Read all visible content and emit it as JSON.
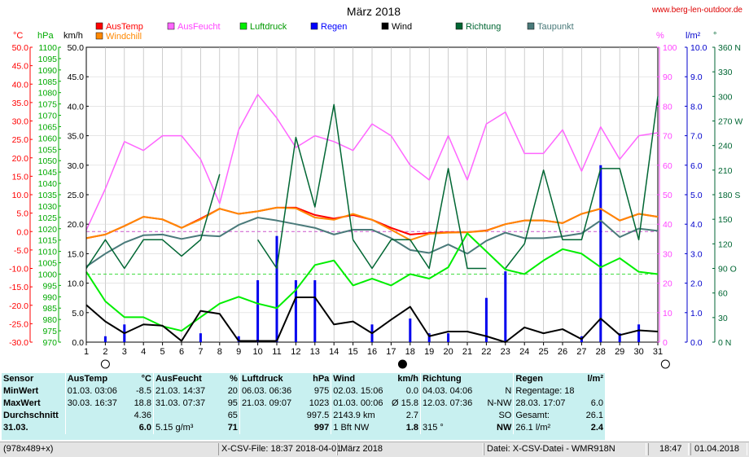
{
  "chart_data": {
    "type": "line",
    "title": "März 2018",
    "source": "www.berg-len-outdoor.de",
    "days": [
      1,
      2,
      3,
      4,
      5,
      6,
      7,
      8,
      9,
      10,
      11,
      12,
      13,
      14,
      15,
      16,
      17,
      18,
      19,
      20,
      21,
      22,
      23,
      24,
      25,
      26,
      27,
      28,
      29,
      30,
      31
    ],
    "axes": {
      "temp": {
        "unit": "°C",
        "color": "#ff0000",
        "min": -30,
        "max": 50,
        "ticks": [
          "50.0",
          "45.0",
          "40.0",
          "35.0",
          "30.0",
          "25.0",
          "20.0",
          "15.0",
          "10.0",
          "5.0",
          "0.0",
          "-5.0",
          "-10.0",
          "-15.0",
          "-20.0",
          "-25.0",
          "-30.0"
        ]
      },
      "pressure": {
        "unit": "hPa",
        "color": "#00cc00",
        "min": 970,
        "max": 1100,
        "ticks": [
          "1100",
          "1095",
          "1090",
          "1085",
          "1080",
          "1075",
          "1070",
          "1065",
          "1060",
          "1055",
          "1050",
          "1045",
          "1040",
          "1035",
          "1030",
          "1025",
          "1020",
          "1015",
          "1010",
          "1005",
          "1000",
          "995",
          "990",
          "985",
          "980",
          "975",
          "970"
        ]
      },
      "wind": {
        "unit": "km/h",
        "color": "#000000",
        "min": 0,
        "max": 50,
        "ticks": [
          "50.0",
          "45.0",
          "40.0",
          "35.0",
          "30.0",
          "25.0",
          "20.0",
          "15.0",
          "10.0",
          "5.0",
          "0.0"
        ]
      },
      "humidity": {
        "unit": "%",
        "color": "#ff66ff",
        "min": 0,
        "max": 100,
        "ticks": [
          "100",
          "90",
          "80",
          "70",
          "60",
          "50",
          "40",
          "30",
          "20",
          "10",
          "0"
        ]
      },
      "rain": {
        "unit": "l/m²",
        "color": "#0000cc",
        "min": 0,
        "max": 10,
        "ticks": [
          "10.0",
          "9.0",
          "8.0",
          "7.0",
          "6.0",
          "5.0",
          "4.0",
          "3.0",
          "2.0",
          "1.0",
          "0.0"
        ]
      },
      "direction": {
        "unit": "°",
        "color": "#006633",
        "min": 0,
        "max": 360,
        "ticks": [
          "360 N",
          "330",
          "300",
          "270 W",
          "240",
          "210",
          "180 S",
          "150",
          "120",
          "90 O",
          "60",
          "30",
          "0 N"
        ]
      }
    },
    "legend": [
      {
        "name": "AusTemp",
        "color": "#ff0000"
      },
      {
        "name": "AusFeucht",
        "color": "#ff66ff"
      },
      {
        "name": "Luftdruck",
        "color": "#00ee00"
      },
      {
        "name": "Regen",
        "color": "#0000ff"
      },
      {
        "name": "Wind",
        "color": "#000000"
      },
      {
        "name": "Richtung",
        "color": "#006633"
      },
      {
        "name": "Taupunkt",
        "color": "#4a7a7a"
      },
      {
        "name": "Windchill",
        "color": "#ff8800"
      }
    ],
    "series": [
      {
        "name": "AusTemp",
        "axis": "temp",
        "color": "#ff0000",
        "width": 2,
        "values": [
          -1.8,
          -0.8,
          1.5,
          4.0,
          3.3,
          1.0,
          3.5,
          6.2,
          4.8,
          5.5,
          6.5,
          6.5,
          4.5,
          3.5,
          4.5,
          3.2,
          1.0,
          -0.8,
          -0.4,
          -0.2,
          -0.2,
          0.3,
          2.0,
          3.0,
          3.0,
          2.3,
          4.8,
          6.2,
          3.0,
          4.8,
          4.0
        ]
      },
      {
        "name": "Windchill",
        "axis": "temp",
        "color": "#ff8800",
        "width": 2,
        "values": [
          -1.8,
          -0.8,
          1.5,
          4.0,
          3.3,
          1.0,
          3.3,
          6.2,
          4.8,
          5.5,
          6.5,
          6.3,
          3.8,
          3.2,
          4.8,
          3.2,
          0.5,
          -2.3,
          -0.6,
          -0.3,
          -0.2,
          0.2,
          2.0,
          3.0,
          3.0,
          2.3,
          4.8,
          6.2,
          3.0,
          4.8,
          4.0
        ]
      },
      {
        "name": "Taupunkt",
        "axis": "temp",
        "color": "#4a7a7a",
        "width": 2,
        "values": [
          -9.5,
          -6.0,
          -3.0,
          -1.0,
          -0.8,
          -2.0,
          -1.0,
          -1.3,
          1.8,
          3.8,
          3.0,
          2.0,
          1.0,
          -0.8,
          0.5,
          0.5,
          -1.8,
          -5.0,
          -5.8,
          -3.5,
          -6.0,
          -2.5,
          -0.3,
          -1.8,
          -1.8,
          -1.3,
          -0.5,
          3.0,
          -1.5,
          0.8,
          0.2
        ]
      },
      {
        "name": "AusFeucht",
        "axis": "humidity",
        "color": "#ff66ff",
        "width": 1.5,
        "values": [
          38,
          52,
          68,
          65,
          70,
          70,
          62,
          47,
          72,
          84,
          76,
          66,
          70,
          68,
          65,
          74,
          70,
          60,
          55,
          70,
          55,
          74,
          78,
          64,
          64,
          72,
          58,
          73,
          62,
          70,
          71
        ]
      },
      {
        "name": "Luftdruck",
        "axis": "pressure",
        "color": "#00ee00",
        "width": 2,
        "values": [
          1001,
          988,
          981,
          981,
          977,
          975,
          981,
          987,
          990,
          987,
          985,
          993,
          1004,
          1006,
          995,
          998,
          995,
          1000,
          998,
          1003,
          1018,
          1010,
          1002,
          1000,
          1006,
          1011,
          1009,
          1003,
          1007,
          1001,
          1000
        ]
      },
      {
        "name": "Wind",
        "axis": "wind",
        "color": "#000000",
        "width": 2,
        "values": [
          6.3,
          3.5,
          1.5,
          3.0,
          2.8,
          0.2,
          5.3,
          4.8,
          0.2,
          0.2,
          0.2,
          7.6,
          7.6,
          3.0,
          3.5,
          1.5,
          3.8,
          6.0,
          1.0,
          1.8,
          1.8,
          1.0,
          0.0,
          2.5,
          1.5,
          2.2,
          0.5,
          4.0,
          1.2,
          2.0,
          1.8
        ]
      },
      {
        "name": "Richtung",
        "axis": "direction",
        "color": "#006633",
        "width": 1.5,
        "segments": [
          [
            [
              1,
              90
            ],
            [
              2,
              125
            ],
            [
              3,
              90
            ],
            [
              4,
              125
            ],
            [
              5,
              125
            ],
            [
              6,
              105
            ],
            [
              7,
              125
            ],
            [
              8,
              205
            ]
          ],
          [
            [
              10,
              125
            ],
            [
              11,
              90
            ],
            [
              12,
              250
            ],
            [
              13,
              165
            ],
            [
              14,
              290
            ],
            [
              15,
              125
            ],
            [
              16,
              90
            ],
            [
              17,
              125
            ],
            [
              18,
              125
            ],
            [
              19,
              90
            ],
            [
              20,
              212
            ],
            [
              21,
              90
            ],
            [
              22,
              90
            ]
          ],
          [
            [
              23,
              90
            ],
            [
              24,
              120
            ],
            [
              25,
              210
            ],
            [
              26,
              125
            ],
            [
              27,
              125
            ],
            [
              28,
              212
            ],
            [
              29,
              212
            ],
            [
              30,
              125
            ],
            [
              31,
              300
            ]
          ]
        ]
      }
    ],
    "rain_bars": [
      0,
      0.2,
      0.6,
      0,
      0,
      0,
      0.3,
      0,
      0.2,
      2.1,
      3.6,
      2.1,
      2.1,
      0,
      0,
      0.6,
      0,
      0.8,
      0.3,
      0.3,
      0,
      1.5,
      2.4,
      0,
      0,
      0,
      0.2,
      6.0,
      0.3,
      0.6,
      0
    ],
    "reference_lines": [
      {
        "axis": "temp",
        "value": 0,
        "color": "#cc55cc"
      },
      {
        "axis": "pressure",
        "value": 1000,
        "color": "#44dd44"
      }
    ],
    "moon_phases": [
      {
        "day": 2,
        "phase": "full"
      },
      {
        "day": 17.6,
        "phase": "new"
      },
      {
        "day": 31.4,
        "phase": "full"
      }
    ]
  },
  "stats": {
    "header": [
      "Sensor",
      "AusTemp",
      "°C",
      "AusFeucht",
      "%",
      "Luftdruck",
      "hPa",
      "Wind",
      "km/h",
      "Richtung",
      "",
      "Regen",
      "l/m²"
    ],
    "rows": [
      {
        "label": "MinWert",
        "c": [
          "01.03.  03:06",
          "-8.5",
          "21.03.  14:37",
          "20",
          "06.03.  06:36",
          "975",
          "02.03.  15:06",
          "0.0",
          "04.03.  04:06",
          "N",
          "Regentage: 18",
          ""
        ]
      },
      {
        "label": "MaxWert",
        "c": [
          "30.03.  16:37",
          "18.8",
          "31.03.  07:37",
          "95",
          "21.03.  09:07",
          "1023",
          "01.03.  00:06",
          "Ø 15.8",
          "12.03.  07:36",
          "N-NW",
          "28.03.  17:07",
          "6.0"
        ]
      },
      {
        "label": "Durchschnitt",
        "c": [
          "",
          "4.36",
          "",
          "65",
          "",
          "997.5",
          "2143.9 km",
          "2.7",
          "",
          "SO",
          "Gesamt:",
          "26.1"
        ]
      },
      {
        "label": "31.03.",
        "c": [
          "",
          "6.0",
          "5.15 g/m³",
          "71",
          "",
          "997",
          "1 Bft NW",
          "1.8",
          "315 °",
          "NW",
          "26.1 l/m²",
          "2.4"
        ]
      }
    ]
  },
  "status": {
    "size": "(978x489+x)",
    "file": "X-CSV-File:  18:37  2018-04-01",
    "month": "März 2018",
    "datei": "Datei: X-CSV-Datei - WMR918N",
    "time": "18:47",
    "date": "01.04.2018"
  }
}
